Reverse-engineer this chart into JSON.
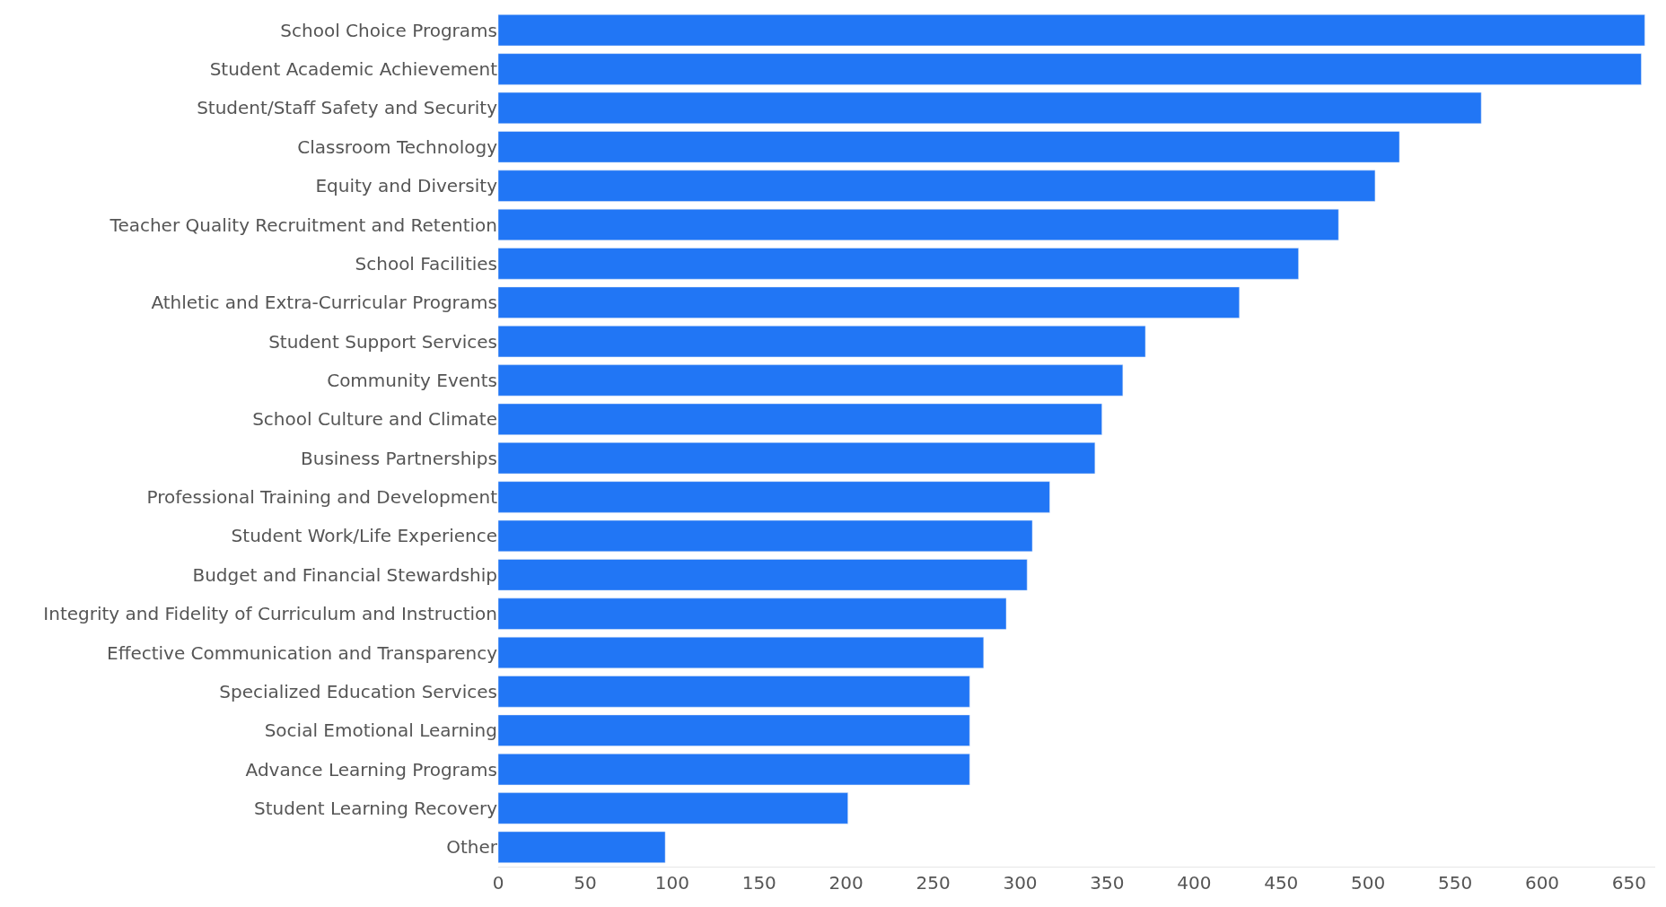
{
  "chart_data": {
    "type": "bar",
    "orientation": "horizontal",
    "color": "#2176f5",
    "categories": [
      "School Choice Programs",
      "Student Academic Achievement",
      "Student/Staff Safety and Security",
      "Classroom Technology",
      "Equity and Diversity",
      "Teacher Quality Recruitment and Retention",
      "School Facilities",
      "Athletic and Extra-Curricular Programs",
      "Student Support Services",
      "Community Events",
      "School Culture and Climate",
      "Business Partnerships",
      "Professional Training and Development",
      "Student Work/Life Experience",
      "Budget and Financial Stewardship",
      "Integrity and Fidelity of Curriculum and Instruction",
      "Effective Communication and Transparency",
      "Specialized Education Services",
      "Social Emotional Learning",
      "Advance Learning Programs",
      "Student Learning Recovery",
      "Other"
    ],
    "values": [
      659,
      657,
      565,
      518,
      504,
      483,
      460,
      426,
      372,
      359,
      347,
      343,
      317,
      307,
      304,
      292,
      279,
      271,
      271,
      271,
      201,
      96
    ],
    "xlim": [
      0,
      665
    ],
    "xticks": [
      0,
      50,
      100,
      150,
      200,
      250,
      300,
      350,
      400,
      450,
      500,
      550,
      600,
      650
    ]
  }
}
